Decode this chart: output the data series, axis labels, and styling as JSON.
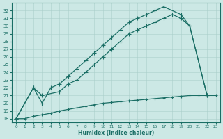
{
  "xlabel": "Humidex (Indice chaleur)",
  "bg_color": "#cce8e5",
  "line_color": "#1a6e65",
  "grid_color": "#aacfcb",
  "ylim": [
    17.5,
    33
  ],
  "xlim": [
    -0.5,
    23.5
  ],
  "yticks": [
    18,
    19,
    20,
    21,
    22,
    23,
    24,
    25,
    26,
    27,
    28,
    29,
    30,
    31,
    32
  ],
  "xticks": [
    0,
    1,
    2,
    3,
    4,
    5,
    6,
    7,
    8,
    9,
    10,
    11,
    12,
    13,
    14,
    15,
    16,
    17,
    18,
    19,
    20,
    21,
    22,
    23
  ],
  "line1_x": [
    0,
    1,
    2,
    3,
    4,
    5,
    6,
    7,
    8,
    9,
    10,
    11,
    12,
    13,
    14,
    15,
    16,
    17,
    18,
    19,
    20,
    21,
    22,
    23
  ],
  "line1_y": [
    18.0,
    18.0,
    18.3,
    18.5,
    18.7,
    19.0,
    19.2,
    19.4,
    19.6,
    19.8,
    20.0,
    20.1,
    20.2,
    20.3,
    20.4,
    20.5,
    20.6,
    20.7,
    20.8,
    20.9,
    21.0,
    21.0,
    21.0,
    21.0
  ],
  "line2_x": [
    0,
    2,
    3,
    5,
    6,
    7,
    8,
    9,
    10,
    11,
    12,
    13,
    14,
    15,
    16,
    17,
    18,
    19,
    20,
    22
  ],
  "line2_y": [
    18.0,
    22.0,
    21.0,
    21.5,
    22.5,
    23.0,
    24.0,
    25.0,
    26.0,
    27.0,
    28.0,
    29.0,
    29.5,
    30.0,
    30.5,
    31.0,
    31.5,
    31.0,
    30.0,
    21.0
  ],
  "line3_x": [
    0,
    2,
    3,
    4,
    5,
    6,
    7,
    8,
    9,
    10,
    11,
    12,
    13,
    14,
    15,
    16,
    17,
    19,
    20,
    22
  ],
  "line3_y": [
    18.0,
    22.0,
    20.0,
    22.0,
    22.5,
    23.5,
    24.5,
    25.5,
    26.5,
    27.5,
    28.5,
    29.5,
    30.5,
    31.0,
    31.5,
    32.0,
    32.5,
    31.5,
    30.0,
    21.0
  ]
}
